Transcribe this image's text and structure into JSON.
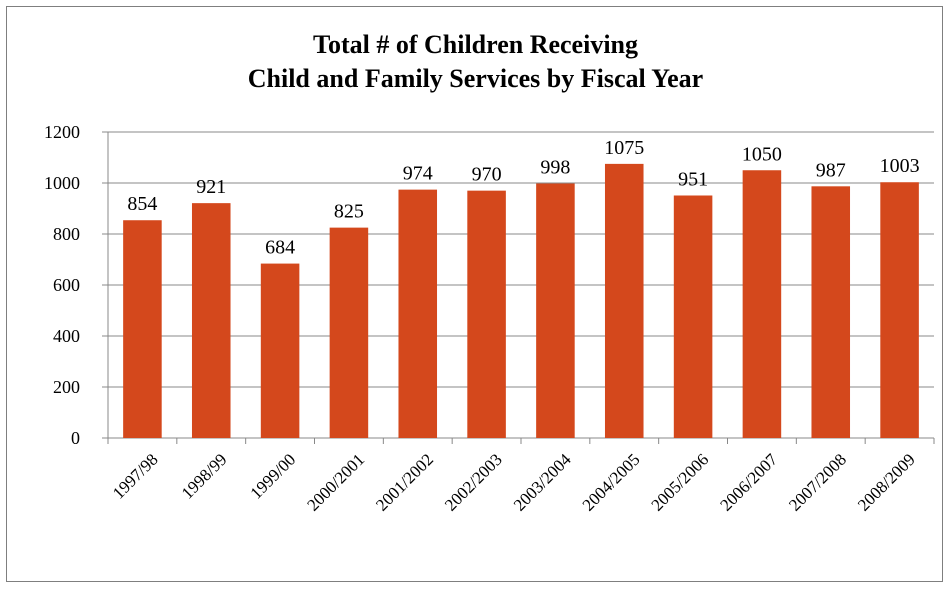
{
  "chart_data": {
    "type": "bar",
    "title_lines": [
      "Total # of Children Receiving",
      "Child and Family Services by Fiscal Year"
    ],
    "categories": [
      "1997/98",
      "1998/99",
      "1999/00",
      "2000/2001",
      "2001/2002",
      "2002/2003",
      "2003/2004",
      "2004/2005",
      "2005/2006",
      "2006/2007",
      "2007/2008",
      "2008/2009"
    ],
    "values": [
      854,
      921,
      684,
      825,
      974,
      970,
      998,
      1075,
      951,
      1050,
      987,
      1003
    ],
    "data_labels": [
      "854",
      "921",
      "684",
      "825",
      "974",
      "970",
      "998",
      "1075",
      "951",
      "1050",
      "987",
      "1003"
    ],
    "ylim": [
      0,
      1200
    ],
    "yticks": [
      0,
      200,
      400,
      600,
      800,
      1000,
      1200
    ],
    "ytick_labels": [
      "0",
      "200",
      "400",
      "600",
      "800",
      "1000",
      "1200"
    ],
    "grid": true,
    "legend": "none",
    "bar_color": "#d4481c",
    "grid_color": "#888888"
  }
}
